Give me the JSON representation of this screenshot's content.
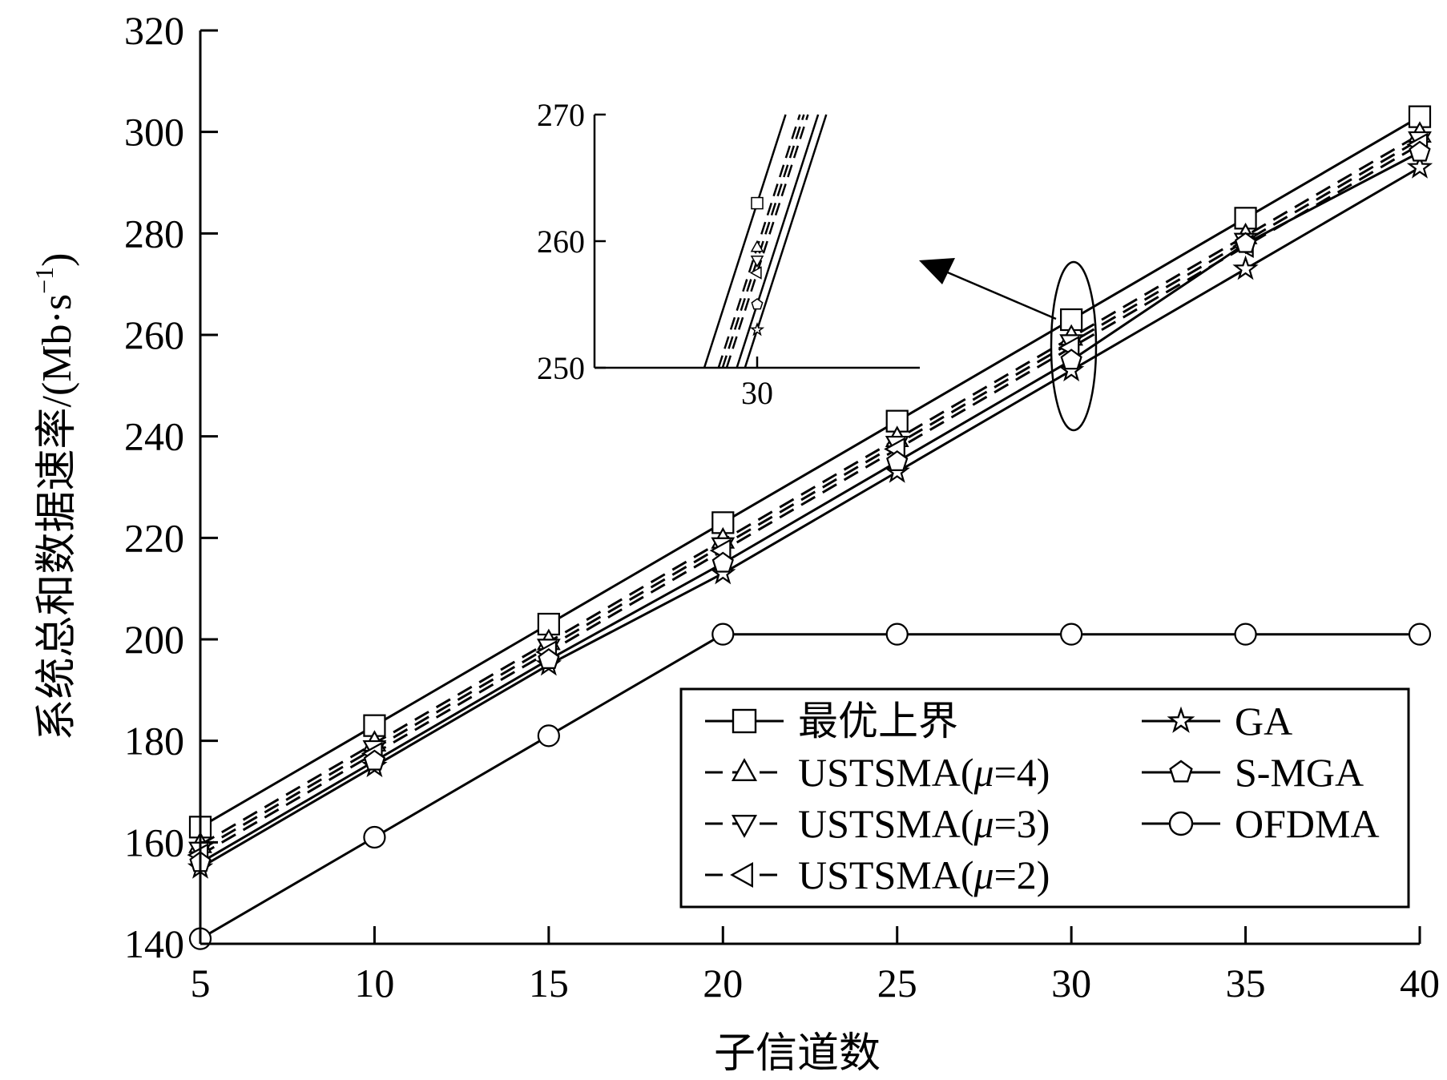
{
  "chart_data": {
    "type": "line",
    "title": "",
    "xlabel": "子信道数",
    "ylabel": "系统总和数据速率/(Mb·s⁻¹)",
    "ylabel_parts": {
      "main": "系统总和数据速率/(Mb·s",
      "sup": "−1",
      "close": ")"
    },
    "xlim": [
      5,
      40
    ],
    "ylim": [
      140,
      320
    ],
    "x_ticks": [
      5,
      10,
      15,
      20,
      25,
      30,
      35,
      40
    ],
    "y_ticks": [
      140,
      160,
      180,
      200,
      220,
      240,
      260,
      280,
      300,
      320
    ],
    "grid": false,
    "legend_position": "bottom-right",
    "x": [
      5,
      10,
      15,
      20,
      25,
      30,
      35,
      40
    ],
    "series": [
      {
        "name": "最优上界",
        "marker": "square",
        "dash": "solid",
        "values": [
          163,
          183,
          203,
          223,
          243,
          263,
          283,
          303
        ]
      },
      {
        "name": "USTSMA(μ=4)",
        "name_parts": [
          "USTSMA(",
          "μ",
          "=4)"
        ],
        "marker": "triangle-up",
        "dash": "dashed",
        "values": [
          159.5,
          179.5,
          199.5,
          219.5,
          239.5,
          259.5,
          279.5,
          299.5
        ]
      },
      {
        "name": "USTSMA(μ=3)",
        "name_parts": [
          "USTSMA(",
          "μ",
          "=3)"
        ],
        "marker": "triangle-down",
        "dash": "dashed",
        "values": [
          158.5,
          178.5,
          198.5,
          218.5,
          238.5,
          258.5,
          278.5,
          298.5
        ]
      },
      {
        "name": "USTSMA(μ=2)",
        "name_parts": [
          "USTSMA(",
          "μ",
          "=2)"
        ],
        "marker": "triangle-left",
        "dash": "dashed",
        "values": [
          157.5,
          177.5,
          197.5,
          217.5,
          237.5,
          257.5,
          277.5,
          297.5
        ]
      },
      {
        "name": "GA",
        "marker": "star",
        "dash": "solid",
        "values": [
          155,
          175,
          195,
          213,
          233,
          253,
          273,
          293
        ]
      },
      {
        "name": "S-MGA",
        "marker": "pentagon",
        "dash": "solid",
        "values": [
          156,
          176,
          196,
          215,
          235,
          255,
          278,
          296
        ]
      },
      {
        "name": "OFDMA",
        "marker": "circle",
        "dash": "solid",
        "values": [
          141,
          161,
          181,
          201,
          201,
          201,
          201,
          201
        ]
      }
    ],
    "inset": {
      "x_ticks": [
        30
      ],
      "y_ticks": [
        250,
        260,
        270
      ],
      "ylim": [
        250,
        270
      ],
      "xlim": [
        20,
        40
      ]
    }
  }
}
